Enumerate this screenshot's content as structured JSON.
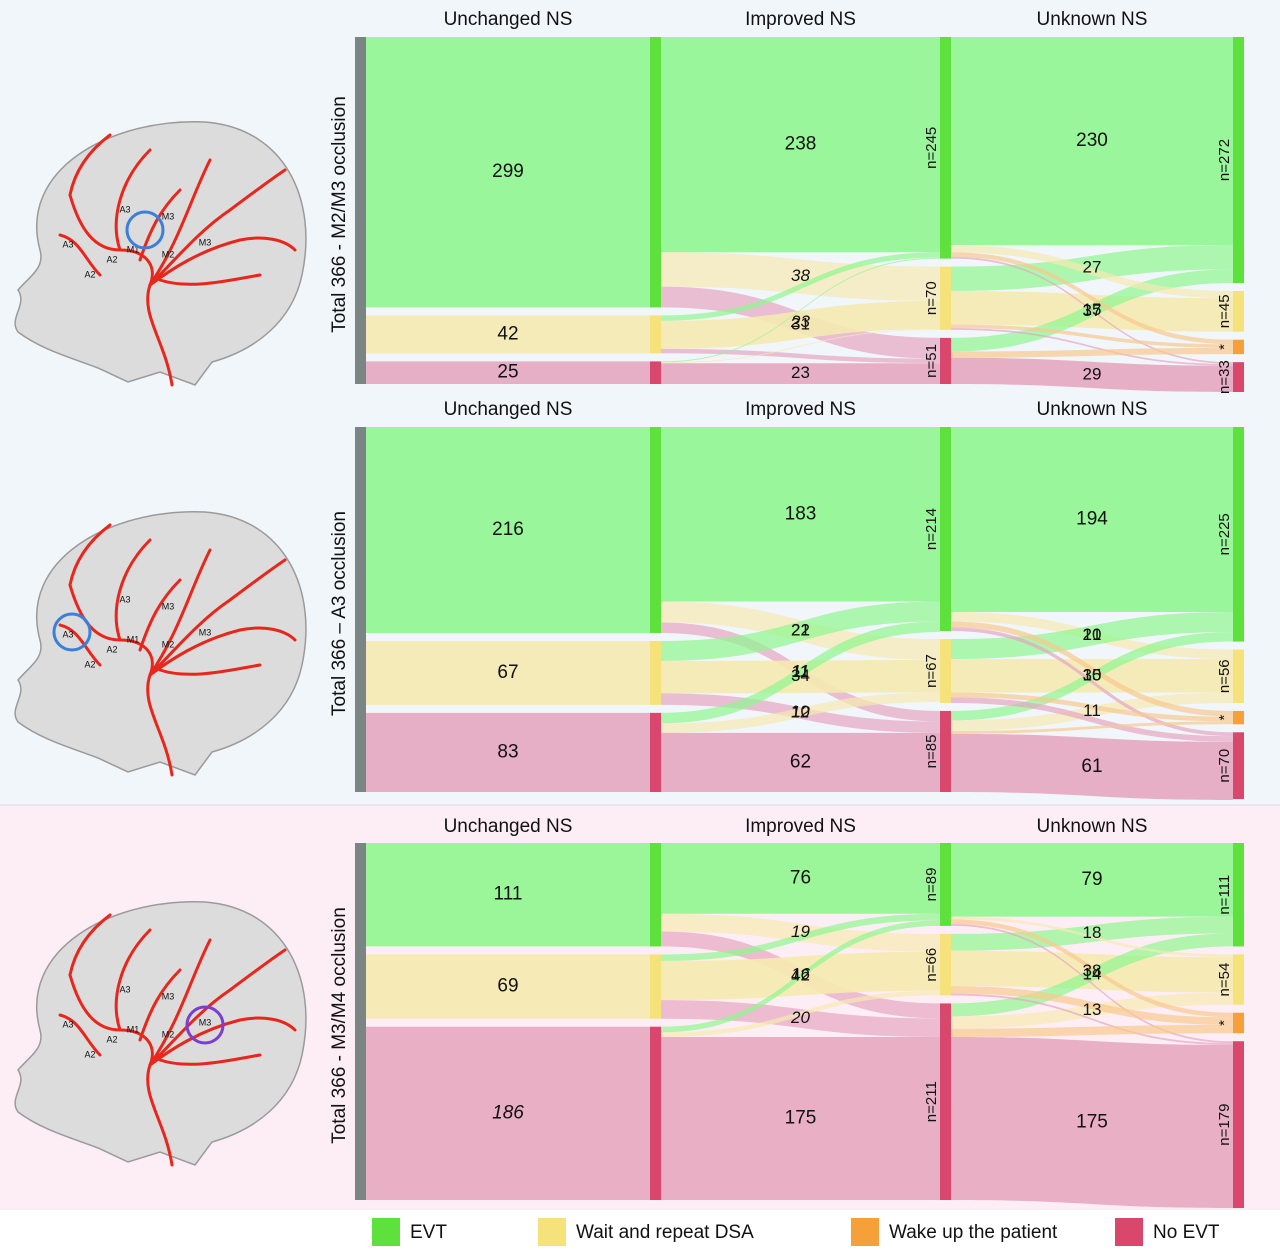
{
  "legend": {
    "items": [
      {
        "name": "EVT",
        "color": "#5ee13c",
        "light": "#8ff68f"
      },
      {
        "name": "Wait and repeat DSA",
        "color": "#f6e27a",
        "light": "#f5eab0"
      },
      {
        "name": "Wake up the patient",
        "color": "#f6a03a",
        "light": "#f8c98f"
      },
      {
        "name": "No EVT",
        "color": "#d9476c",
        "light": "#e6a7c0"
      }
    ]
  },
  "chart_data": [
    {
      "type": "sankey",
      "title": "Total 366 - M2/M3 occlusion",
      "illustration_labels": [
        "A3",
        "A3",
        "A2",
        "A2",
        "M1",
        "M2",
        "M3",
        "M3"
      ],
      "regions": [
        {
          "label": "Unchanged NS",
          "flows": [
            {
              "to": 0,
              "value": 299
            },
            {
              "to": 1,
              "value": 42
            },
            {
              "to": 3,
              "value": 25
            }
          ]
        },
        {
          "label": "Improved NS",
          "flows": [
            {
              "from": 0,
              "to": 0,
              "value": 238
            },
            {
              "from": 0,
              "to": 1,
              "value": 38,
              "italic": true
            },
            {
              "from": 0,
              "to": 3,
              "value": 23,
              "italic": true
            },
            {
              "from": 1,
              "to": 1,
              "value": 31
            },
            {
              "from": 3,
              "to": 3,
              "value": 23
            }
          ],
          "minor_flows": [
            {
              "from": 1,
              "to": 0,
              "value": 6
            },
            {
              "from": 1,
              "to": 3,
              "value": 5
            },
            {
              "from": 3,
              "to": 0,
              "value": 1
            },
            {
              "from": 3,
              "to": 1,
              "value": 1
            }
          ]
        },
        {
          "label": "Unknown NS",
          "flows": [
            {
              "from": 0,
              "to": 0,
              "value": 230
            },
            {
              "from": 1,
              "to": 0,
              "value": 27
            },
            {
              "from": 1,
              "to": 1,
              "value": 37
            },
            {
              "from": 3,
              "to": 0,
              "value": 15
            },
            {
              "from": 3,
              "to": 3,
              "value": 29
            }
          ],
          "minor_flows": [
            {
              "from": 0,
              "to": 1,
              "value": 8
            },
            {
              "from": 0,
              "to": 2,
              "value": 5
            },
            {
              "from": 0,
              "to": 3,
              "value": 2
            },
            {
              "from": 1,
              "to": 2,
              "value": 4
            },
            {
              "from": 1,
              "to": 3,
              "value": 2
            },
            {
              "from": 3,
              "to": 2,
              "value": 7
            }
          ]
        }
      ],
      "columns": [
        {
          "nodes": [
            {
              "cat": 0,
              "value": 245,
              "label": "n=245"
            },
            {
              "cat": 1,
              "value": 70,
              "label": "n=70"
            },
            {
              "cat": 3,
              "value": 51,
              "label": "n=51"
            }
          ]
        },
        {
          "nodes": [
            {
              "cat": 0,
              "value": 272,
              "label": "n=272"
            },
            {
              "cat": 1,
              "value": 45,
              "label": "n=45"
            },
            {
              "cat": 2,
              "value": 16,
              "label": "*"
            },
            {
              "cat": 3,
              "value": 33,
              "label": "n=33"
            }
          ]
        }
      ]
    },
    {
      "type": "sankey",
      "title": "Total 366 – A3 occlusion",
      "illustration_labels": [
        "A3",
        "A3",
        "A2",
        "A2",
        "M1",
        "M2",
        "M3",
        "M3"
      ],
      "regions": [
        {
          "label": "Unchanged NS",
          "flows": [
            {
              "to": 0,
              "value": 216
            },
            {
              "to": 1,
              "value": 67
            },
            {
              "to": 3,
              "value": 83
            }
          ]
        },
        {
          "label": "Improved NS",
          "flows": [
            {
              "from": 0,
              "to": 0,
              "value": 183
            },
            {
              "from": 0,
              "to": 1,
              "value": 22
            },
            {
              "from": 0,
              "to": 3,
              "value": 11,
              "italic": true
            },
            {
              "from": 1,
              "to": 0,
              "value": 21
            },
            {
              "from": 1,
              "to": 1,
              "value": 34
            },
            {
              "from": 1,
              "to": 3,
              "value": 12,
              "italic": true
            },
            {
              "from": 3,
              "to": 0,
              "value": 11
            },
            {
              "from": 3,
              "to": 1,
              "value": 10
            },
            {
              "from": 3,
              "to": 3,
              "value": 62
            }
          ],
          "minor_flows": []
        },
        {
          "label": "Unknown NS",
          "flows": [
            {
              "from": 0,
              "to": 0,
              "value": 194
            },
            {
              "from": 0,
              "to": 1,
              "value": 10
            },
            {
              "from": 1,
              "to": 0,
              "value": 21
            },
            {
              "from": 1,
              "to": 1,
              "value": 35
            },
            {
              "from": 3,
              "to": 0,
              "value": 10
            },
            {
              "from": 3,
              "to": 1,
              "value": 11
            },
            {
              "from": 3,
              "to": 3,
              "value": 61
            }
          ],
          "minor_flows": [
            {
              "from": 0,
              "to": 2,
              "value": 6
            },
            {
              "from": 0,
              "to": 3,
              "value": 4
            },
            {
              "from": 1,
              "to": 2,
              "value": 5
            },
            {
              "from": 1,
              "to": 3,
              "value": 6
            },
            {
              "from": 3,
              "to": 2,
              "value": 3
            }
          ]
        }
      ],
      "columns": [
        {
          "nodes": [
            {
              "cat": 0,
              "value": 214,
              "label": "n=214"
            },
            {
              "cat": 1,
              "value": 67,
              "label": "n=67"
            },
            {
              "cat": 3,
              "value": 85,
              "label": "n=85"
            }
          ]
        },
        {
          "nodes": [
            {
              "cat": 0,
              "value": 225,
              "label": "n=225"
            },
            {
              "cat": 1,
              "value": 56,
              "label": "n=56"
            },
            {
              "cat": 2,
              "value": 14,
              "label": "*"
            },
            {
              "cat": 3,
              "value": 70,
              "label": "n=70"
            }
          ]
        }
      ]
    },
    {
      "type": "sankey",
      "title": "Total 366 - M3/M4 occlusion",
      "illustration_labels": [
        "A3",
        "A3",
        "A2",
        "A2",
        "M1",
        "M2",
        "M3",
        "M3"
      ],
      "regions": [
        {
          "label": "Unchanged NS",
          "flows": [
            {
              "to": 0,
              "value": 111
            },
            {
              "to": 1,
              "value": 69
            },
            {
              "to": 3,
              "value": 186,
              "italic": true
            }
          ]
        },
        {
          "label": "Improved NS",
          "flows": [
            {
              "from": 0,
              "to": 0,
              "value": 76
            },
            {
              "from": 0,
              "to": 1,
              "value": 19,
              "italic": true
            },
            {
              "from": 0,
              "to": 3,
              "value": 16,
              "italic": true
            },
            {
              "from": 1,
              "to": 1,
              "value": 42
            },
            {
              "from": 1,
              "to": 3,
              "value": 20,
              "italic": true
            },
            {
              "from": 3,
              "to": 3,
              "value": 175
            }
          ],
          "minor_flows": [
            {
              "from": 1,
              "to": 0,
              "value": 7
            },
            {
              "from": 3,
              "to": 0,
              "value": 6
            },
            {
              "from": 3,
              "to": 1,
              "value": 5
            }
          ]
        },
        {
          "label": "Unknown NS",
          "flows": [
            {
              "from": 0,
              "to": 0,
              "value": 79
            },
            {
              "from": 1,
              "to": 0,
              "value": 18
            },
            {
              "from": 1,
              "to": 1,
              "value": 38
            },
            {
              "from": 3,
              "to": 0,
              "value": 14
            },
            {
              "from": 3,
              "to": 1,
              "value": 13
            },
            {
              "from": 3,
              "to": 3,
              "value": 175
            }
          ],
          "minor_flows": [
            {
              "from": 0,
              "to": 1,
              "value": 3
            },
            {
              "from": 0,
              "to": 2,
              "value": 5
            },
            {
              "from": 0,
              "to": 3,
              "value": 2
            },
            {
              "from": 1,
              "to": 2,
              "value": 8
            },
            {
              "from": 1,
              "to": 3,
              "value": 2
            },
            {
              "from": 3,
              "to": 2,
              "value": 9
            }
          ]
        }
      ],
      "columns": [
        {
          "nodes": [
            {
              "cat": 0,
              "value": 89,
              "label": "n=89"
            },
            {
              "cat": 1,
              "value": 66,
              "label": "n=66"
            },
            {
              "cat": 3,
              "value": 211,
              "label": "n=211"
            }
          ]
        },
        {
          "nodes": [
            {
              "cat": 0,
              "value": 111,
              "label": "n=111"
            },
            {
              "cat": 1,
              "value": 54,
              "label": "n=54"
            },
            {
              "cat": 2,
              "value": 22,
              "label": "*"
            },
            {
              "cat": 3,
              "value": 179,
              "label": "n=179"
            }
          ]
        }
      ]
    }
  ]
}
